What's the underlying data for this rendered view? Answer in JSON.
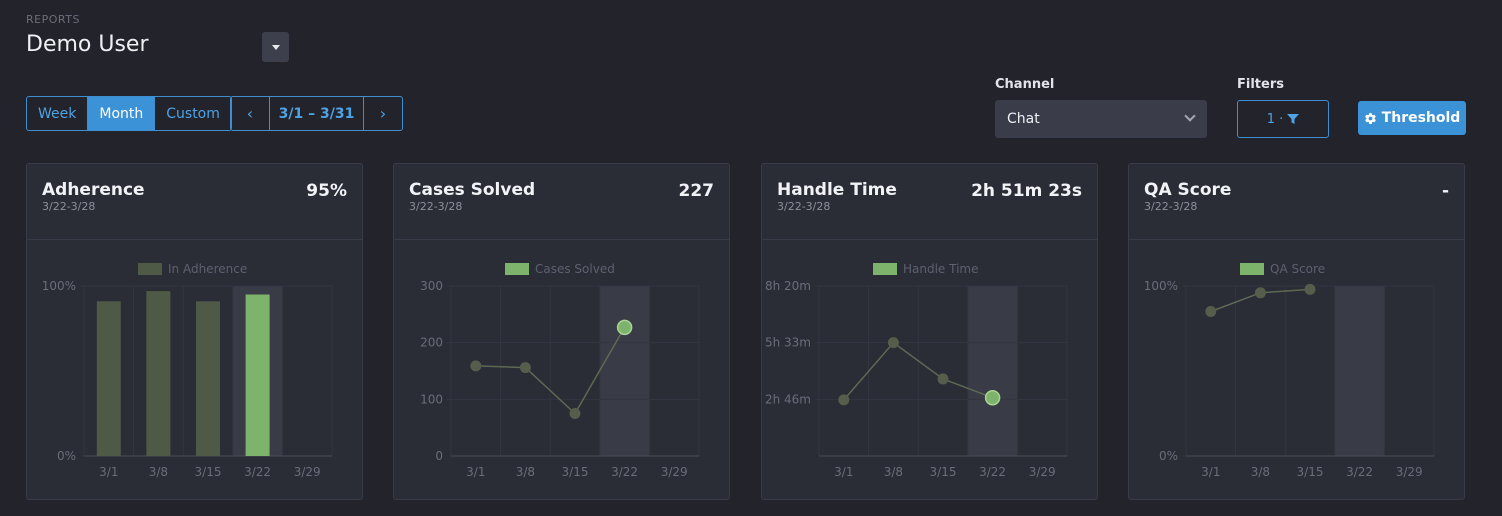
{
  "header": {
    "eyebrow": "REPORTS",
    "title": "Demo User"
  },
  "period": {
    "options": [
      "Week",
      "Month",
      "Custom"
    ],
    "active": "Month",
    "range": "3/1 – 3/31",
    "prev_icon": "‹",
    "next_icon": "›"
  },
  "channel": {
    "label": "Channel",
    "value": "Chat"
  },
  "filters": {
    "label": "Filters",
    "count_text": "1 ·"
  },
  "threshold": {
    "label": "Threshold"
  },
  "colors": {
    "accent": "#3b92d6",
    "highlight": "#7db36b",
    "muted": "#4e5a45"
  },
  "cards": [
    {
      "title": "Adherence",
      "subtitle": "3/22-3/28",
      "value": "95%"
    },
    {
      "title": "Cases Solved",
      "subtitle": "3/22-3/28",
      "value": "227"
    },
    {
      "title": "Handle Time",
      "subtitle": "3/22-3/28",
      "value": "2h 51m 23s"
    },
    {
      "title": "QA Score",
      "subtitle": "3/22-3/28",
      "value": "-"
    }
  ],
  "chart_data": [
    {
      "type": "bar",
      "legend": "In Adherence",
      "categories": [
        "3/1",
        "3/8",
        "3/15",
        "3/22",
        "3/29"
      ],
      "values": [
        91,
        97,
        91,
        95,
        null
      ],
      "highlight_index": 3,
      "ylim": [
        0,
        100
      ],
      "yticks": [
        {
          "v": 0,
          "label": "0%"
        },
        {
          "v": 100,
          "label": "100%"
        }
      ]
    },
    {
      "type": "line",
      "legend": "Cases Solved",
      "categories": [
        "3/1",
        "3/8",
        "3/15",
        "3/22",
        "3/29"
      ],
      "values": [
        159,
        156,
        75,
        227,
        null
      ],
      "highlight_index": 3,
      "ylim": [
        0,
        300
      ],
      "yticks": [
        {
          "v": 0,
          "label": "0"
        },
        {
          "v": 100,
          "label": "100"
        },
        {
          "v": 200,
          "label": "200"
        },
        {
          "v": 300,
          "label": "300"
        }
      ]
    },
    {
      "type": "line",
      "legend": "Handle Time",
      "categories": [
        "3/1",
        "3/8",
        "3/15",
        "3/22",
        "3/29"
      ],
      "values": [
        9900,
        20000,
        13600,
        10283,
        null
      ],
      "highlight_index": 3,
      "ylim": [
        0,
        30000
      ],
      "yticks": [
        {
          "v": 10000,
          "label": "2h 46m"
        },
        {
          "v": 20000,
          "label": "5h 33m"
        },
        {
          "v": 30000,
          "label": "8h 20m"
        }
      ]
    },
    {
      "type": "line",
      "legend": "QA Score",
      "categories": [
        "3/1",
        "3/8",
        "3/15",
        "3/22",
        "3/29"
      ],
      "values": [
        85,
        96,
        98,
        null,
        null
      ],
      "highlight_index": 3,
      "ylim": [
        0,
        100
      ],
      "yticks": [
        {
          "v": 0,
          "label": "0%"
        },
        {
          "v": 100,
          "label": "100%"
        }
      ]
    }
  ]
}
